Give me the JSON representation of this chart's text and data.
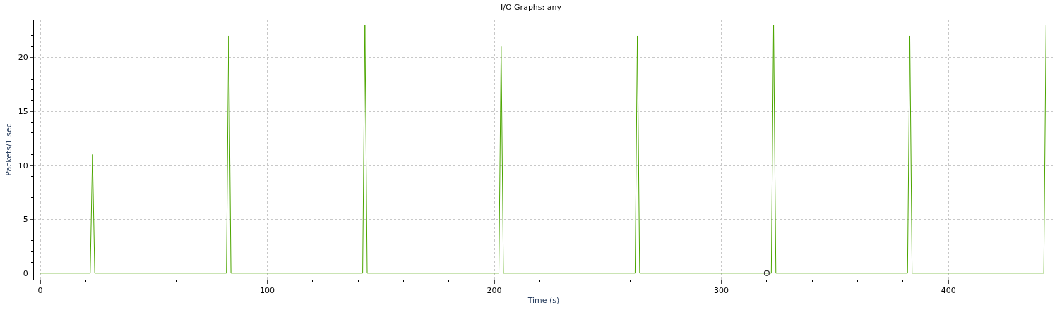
{
  "chart_data": {
    "type": "line",
    "title": "I/O Graphs: any",
    "xlabel": "Time (s)",
    "ylabel": "Packets/1 sec",
    "xlim": [
      -2.8,
      446.3
    ],
    "ylim": [
      -0.6,
      23.5
    ],
    "xticks": [
      0,
      100,
      200,
      300,
      400
    ],
    "yticks": [
      0,
      5,
      10,
      15,
      20
    ],
    "grid": true,
    "series": [
      {
        "color": "#4da600",
        "x": [
          0,
          22,
          23,
          24,
          82,
          83,
          84,
          142,
          143,
          144,
          202,
          203,
          204,
          262,
          263,
          264,
          322,
          323,
          324,
          382,
          383,
          384,
          442,
          443
        ],
        "values": [
          0,
          0,
          11,
          0,
          0,
          22,
          0,
          0,
          23,
          0,
          0,
          21,
          0,
          0,
          22,
          0,
          0,
          23,
          0,
          0,
          22,
          0,
          0,
          23
        ]
      },
      {
        "type": "scatter",
        "color": "#333333",
        "marker": "circle",
        "x": [
          320
        ],
        "values": [
          0
        ]
      }
    ]
  }
}
